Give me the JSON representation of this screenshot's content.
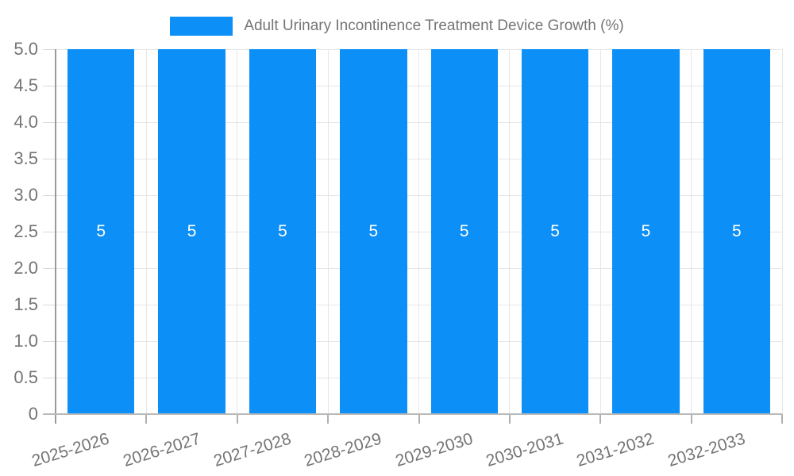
{
  "chart_data": {
    "type": "bar",
    "title": "Adult Urinary Incontinence Treatment Device Growth (%)",
    "categories": [
      "2025-2026",
      "2026-2027",
      "2027-2028",
      "2028-2029",
      "2029-2030",
      "2030-2031",
      "2031-2032",
      "2032-2033"
    ],
    "values": [
      5,
      5,
      5,
      5,
      5,
      5,
      5,
      5
    ],
    "value_labels": [
      "5",
      "5",
      "5",
      "5",
      "5",
      "5",
      "5",
      "5"
    ],
    "xlabel": "",
    "ylabel": "",
    "ylim": [
      0,
      5
    ],
    "ytick_step": 0.5,
    "ytick_labels": [
      "0",
      "0.5",
      "1.0",
      "1.5",
      "2.0",
      "2.5",
      "3.0",
      "3.5",
      "4.0",
      "4.5",
      "5.0"
    ],
    "grid": true,
    "legend_position": "top",
    "colors": {
      "bar": "#0d8ff8",
      "value_label": "#ffffff",
      "axis_text": "#757575",
      "gridline": "#e6e6e6"
    }
  }
}
